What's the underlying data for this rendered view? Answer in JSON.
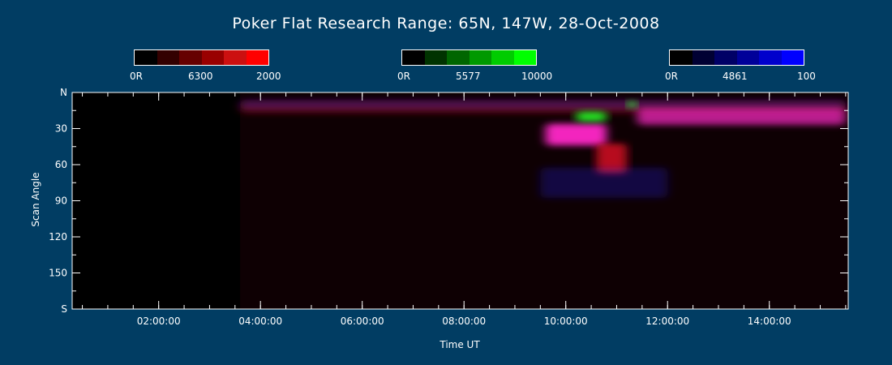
{
  "chart_data": {
    "type": "heatmap",
    "title": "Poker Flat Research Range: 65N, 147W, 28-Oct-2008",
    "xlabel": "Time UT",
    "ylabel": "Scan Angle",
    "x_ticks": [
      "02:00:00",
      "04:00:00",
      "06:00:00",
      "08:00:00",
      "10:00:00",
      "12:00:00",
      "14:00:00"
    ],
    "x_tick_hours": [
      2,
      4,
      6,
      8,
      10,
      12,
      14
    ],
    "x_range_hours": [
      0.3,
      15.55
    ],
    "y_ticks": [
      "N",
      "30",
      "60",
      "90",
      "120",
      "150",
      "S"
    ],
    "y_tick_values": [
      0,
      30,
      60,
      90,
      120,
      150,
      180
    ],
    "y_range": [
      0,
      180
    ],
    "data_start_hour": 3.6,
    "colorbars": [
      {
        "wavelength": "6300",
        "min_label": "0R",
        "max_label": "2000",
        "channel": "red",
        "colors": [
          "#000000",
          "#330000",
          "#660000",
          "#990000",
          "#cc1010",
          "#ff0000"
        ]
      },
      {
        "wavelength": "5577",
        "min_label": "0R",
        "max_label": "10000",
        "channel": "green",
        "colors": [
          "#000000",
          "#003300",
          "#006600",
          "#009900",
          "#00cc00",
          "#00ff00"
        ]
      },
      {
        "wavelength": "4861",
        "min_label": "0R",
        "max_label": "100",
        "channel": "blue",
        "colors": [
          "#000000",
          "#000033",
          "#000066",
          "#000099",
          "#0000cc",
          "#0000ff"
        ]
      }
    ],
    "emission_features": [
      {
        "channel": "red",
        "t0": 3.6,
        "t1": 15.5,
        "angle_center": 12,
        "angle_width": 10,
        "intensity": 0.35
      },
      {
        "channel": "blue",
        "t0": 3.6,
        "t1": 15.5,
        "angle_center": 10,
        "angle_width": 8,
        "intensity": 0.25
      },
      {
        "channel": "magenta",
        "t0": 9.6,
        "t1": 10.8,
        "angle_center": 35,
        "angle_width": 18,
        "intensity": 0.95
      },
      {
        "channel": "red",
        "t0": 10.6,
        "t1": 11.2,
        "angle_center": 55,
        "angle_width": 25,
        "intensity": 0.7
      },
      {
        "channel": "magenta",
        "t0": 11.4,
        "t1": 15.5,
        "angle_center": 20,
        "angle_width": 14,
        "intensity": 0.7
      },
      {
        "channel": "green",
        "t0": 10.2,
        "t1": 10.8,
        "angle_center": 20,
        "angle_width": 8,
        "intensity": 0.9
      },
      {
        "channel": "green",
        "t0": 11.2,
        "t1": 11.4,
        "angle_center": 10,
        "angle_width": 6,
        "intensity": 0.8
      },
      {
        "channel": "blue",
        "t0": 9.5,
        "t1": 12.0,
        "angle_center": 75,
        "angle_width": 25,
        "intensity": 0.25
      }
    ]
  }
}
